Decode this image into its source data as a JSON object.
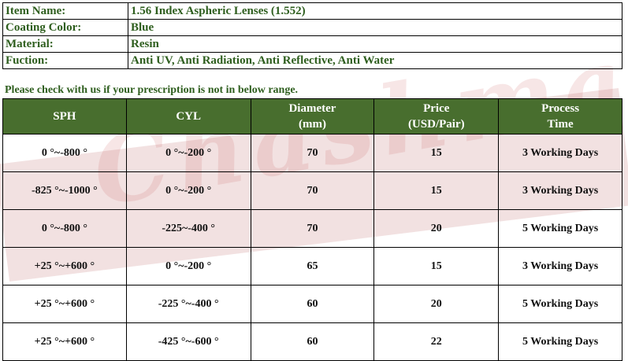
{
  "watermark": "Chashma",
  "info": [
    {
      "label": "Item Name:",
      "value": "1.56 Index Aspheric Lenses (1.552)"
    },
    {
      "label": "Coating Color:",
      "value": "Blue"
    },
    {
      "label": "Material:",
      "value": "Resin"
    },
    {
      "label": "Fuction:",
      "value": "Anti UV, Anti Radiation, Anti Reflective, Anti Water"
    }
  ],
  "note": "Please check with us if your prescription is not in below range.",
  "table": {
    "headers": [
      {
        "line1": "SPH",
        "line2": ""
      },
      {
        "line1": "CYL",
        "line2": ""
      },
      {
        "line1": "Diameter",
        "line2": "(mm)"
      },
      {
        "line1": "Price",
        "line2": "(USD/Pair)"
      },
      {
        "line1": "Process",
        "line2": "Time"
      }
    ],
    "rows": [
      [
        "0 °~-800 °",
        "0 °~-200 °",
        "70",
        "15",
        "3 Working Days"
      ],
      [
        "-825 °~-1000 °",
        "0 °~-200 °",
        "70",
        "15",
        "3 Working Days"
      ],
      [
        "0 °~-800 °",
        "-225~-400 °",
        "70",
        "20",
        "5 Working Days"
      ],
      [
        "+25 °~+600 °",
        "0 °~-200 °",
        "65",
        "15",
        "3 Working Days"
      ],
      [
        "+25 °~+600 °",
        "-225 °~-400 °",
        "60",
        "20",
        "5 Working Days"
      ],
      [
        "+25 °~+600 °",
        "-425 °~-600 °",
        "60",
        "22",
        "5 Working Days"
      ]
    ]
  },
  "colors": {
    "header_bg": "#486e2e",
    "label_text": "#2e5e1e",
    "watermark_band": "#c47878"
  }
}
